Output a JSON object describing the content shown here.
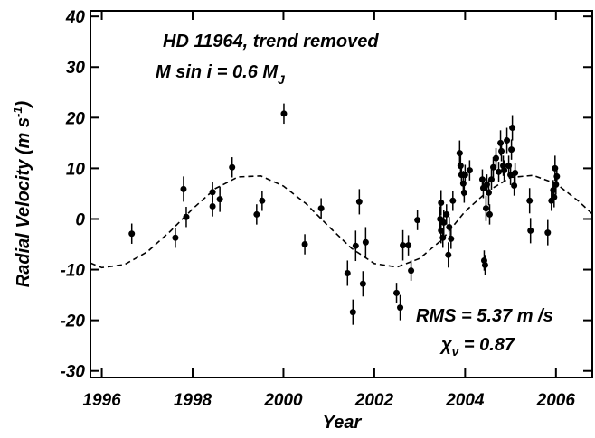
{
  "chart_data": {
    "type": "scatter",
    "annotations": [
      {
        "text": "HD 11964, trend removed"
      },
      {
        "text": "M sin i = 0.6 M",
        "sub": "J"
      },
      {
        "text": "RMS = 5.37 m /s"
      },
      {
        "text": "χ",
        "sub": "ν",
        "rest": " = 0.87"
      }
    ],
    "xlabel": "Year",
    "ylabel": {
      "text": "Radial Velocity  (m s",
      "sup": "-1",
      "end": ")"
    },
    "xlim": [
      1995.75,
      2006.8
    ],
    "ylim": [
      -31.3,
      41.1
    ],
    "xticks": [
      1996,
      1998,
      2000,
      2002,
      2004,
      2006
    ],
    "yticks": [
      -30,
      -20,
      -10,
      0,
      10,
      20,
      30,
      40
    ],
    "series": [
      {
        "name": "Radial velocity",
        "color": "#000000",
        "x": [
          1996.66,
          1997.62,
          1997.8,
          1997.86,
          1998.44,
          1998.44,
          1998.6,
          1998.87,
          1999.41,
          1999.53,
          2000.01,
          2000.47,
          2000.83,
          2001.41,
          2001.53,
          2001.59,
          2001.67,
          2001.75,
          2001.81,
          2002.49,
          2002.57,
          2002.63,
          2002.75,
          2002.81,
          2002.95,
          2003.45,
          2003.47,
          2003.47,
          2003.51,
          2003.53,
          2003.59,
          2003.63,
          2003.65,
          2003.69,
          2003.73,
          2003.88,
          2003.9,
          2003.92,
          2003.96,
          2003.98,
          2004.0,
          2004.1,
          2004.38,
          2004.4,
          2004.42,
          2004.44,
          2004.46,
          2004.48,
          2004.52,
          2004.54,
          2004.58,
          2004.62,
          2004.68,
          2004.74,
          2004.78,
          2004.8,
          2004.84,
          2004.86,
          2004.92,
          2004.96,
          2005.0,
          2005.02,
          2005.04,
          2005.08,
          2005.1,
          2005.42,
          2005.44,
          2005.82,
          2005.9,
          2005.94,
          2005.96,
          2005.98,
          2006.0,
          2006.02
        ],
        "values": [
          -2.9,
          -3.7,
          5.9,
          0.4,
          5.3,
          2.5,
          3.9,
          10.2,
          0.9,
          3.6,
          20.8,
          -5.0,
          2.1,
          -10.7,
          -18.4,
          -5.3,
          3.4,
          -12.8,
          -4.6,
          -14.6,
          -17.5,
          -5.2,
          -5.2,
          -10.2,
          -0.2,
          0.0,
          3.2,
          -2.3,
          -3.7,
          -0.7,
          0.9,
          -7.1,
          -1.6,
          -3.9,
          3.6,
          13.0,
          10.5,
          8.7,
          7.0,
          5.2,
          8.7,
          9.6,
          7.8,
          6.1,
          -8.2,
          -9.1,
          2.1,
          6.8,
          5.2,
          0.9,
          7.8,
          10.2,
          12.0,
          9.3,
          15.0,
          13.4,
          10.5,
          9.6,
          15.5,
          10.5,
          8.7,
          13.7,
          18.0,
          6.6,
          9.1,
          3.6,
          -2.3,
          -2.7,
          3.6,
          5.7,
          4.3,
          10.0,
          6.8,
          8.4
        ],
        "errors": [
          2,
          2,
          2.5,
          2,
          2,
          2,
          2.5,
          2,
          2,
          2,
          2,
          2,
          2,
          2.5,
          2.5,
          3,
          2.5,
          2.5,
          3,
          2,
          2.5,
          3,
          2,
          2,
          2,
          2.5,
          2.5,
          2.5,
          2,
          2.5,
          2,
          2.5,
          2,
          2,
          2,
          2.5,
          2,
          2,
          2.5,
          2,
          2,
          2,
          2,
          2,
          2,
          2,
          2.5,
          2,
          2.5,
          2,
          2,
          2,
          2,
          2,
          2.5,
          2,
          2,
          2,
          2.5,
          2,
          2,
          2,
          2.5,
          2,
          2,
          2.5,
          2.5,
          2.5,
          2,
          2,
          2,
          2.5,
          2,
          2
        ]
      },
      {
        "name": "Fit",
        "color": "#000000",
        "dashed": true,
        "x": [
          1995.75,
          1996.0,
          1996.5,
          1997.0,
          1997.5,
          1998.0,
          1998.5,
          1999.0,
          1999.5,
          2000.0,
          2000.5,
          2001.0,
          2001.5,
          2002.0,
          2002.5,
          2003.0,
          2003.5,
          2004.0,
          2004.5,
          2005.0,
          2005.5,
          2006.0,
          2006.5,
          2006.8
        ],
        "values": [
          -8.7,
          -9.6,
          -9.0,
          -6.5,
          -2.5,
          2.0,
          6.0,
          8.3,
          8.5,
          6.5,
          3.0,
          -1.5,
          -5.8,
          -8.8,
          -9.5,
          -7.8,
          -4.0,
          1.5,
          5.5,
          8.2,
          8.6,
          7.0,
          3.5,
          1.0
        ]
      }
    ]
  }
}
